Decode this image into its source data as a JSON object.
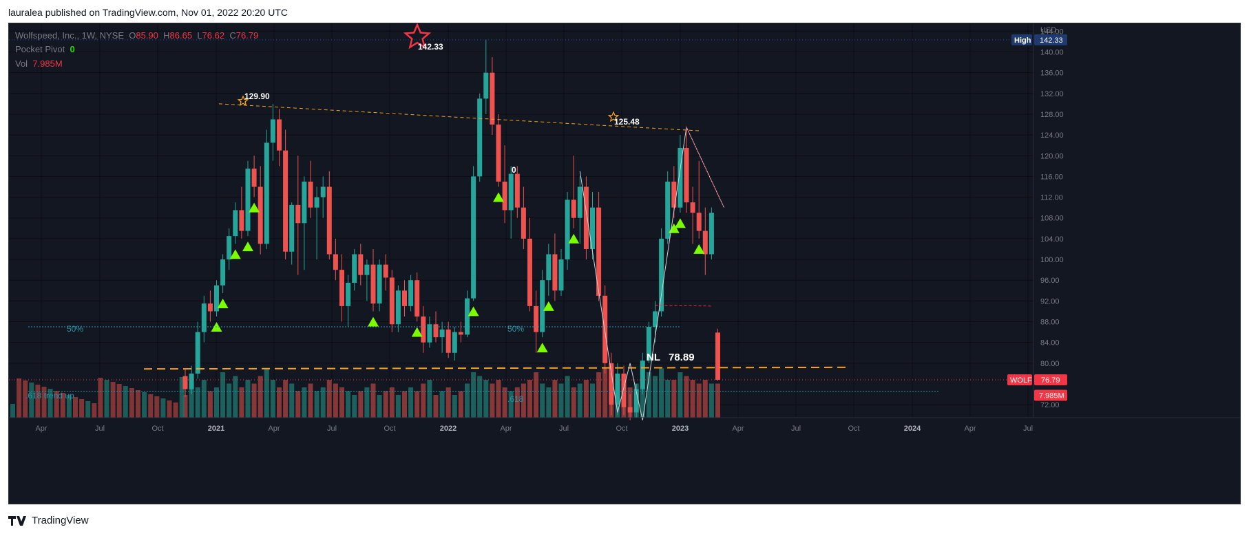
{
  "header": {
    "text": "lauralea published on TradingView.com, Nov 01, 2022 20:20 UTC"
  },
  "footer": {
    "brand": "TradingView",
    "logo": "tv-logo-icon"
  },
  "legend": {
    "symbol": "Wolfspeed, Inc., 1W, NYSE",
    "open_label": "O",
    "open": "85.90",
    "high_label": "H",
    "high": "86.65",
    "low_label": "L",
    "low": "76.62",
    "close_label": "C",
    "close": "76.79",
    "indicator_name": "Pocket Pivot",
    "indicator_value": "0",
    "vol_label": "Vol",
    "vol_value": "7.985M"
  },
  "colors": {
    "background": "#131722",
    "up": "#26a69a",
    "down": "#ef5350",
    "grid": "#000000",
    "orange": "#f7a21b",
    "fib": "#2196a8",
    "marker": "#7cfc00",
    "badge_high": "#1e3a6e",
    "badge_last": "#f23645"
  },
  "chart_data": {
    "type": "candlestick",
    "symbol": "WOLF",
    "currency": "USD",
    "y_ticks": [
      "72.00",
      "80.00",
      "84.00",
      "88.00",
      "92.00",
      "96.00",
      "100.00",
      "104.00",
      "108.00",
      "112.00",
      "116.00",
      "120.00",
      "124.00",
      "128.00",
      "132.00",
      "136.00",
      "140.00",
      "144.00"
    ],
    "x_ticks": [
      "Apr",
      "Jul",
      "Oct",
      "2021",
      "Apr",
      "Jul",
      "Oct",
      "2022",
      "Apr",
      "Jul",
      "Oct",
      "2023",
      "Apr",
      "Jul",
      "Oct",
      "2024",
      "Apr",
      "Jul"
    ],
    "x_tick_bold": [
      "2021",
      "2022",
      "2023",
      "2024"
    ],
    "last_price": "76.79",
    "last_volume": "7.985M",
    "high_label": "High",
    "high_value": "142.33",
    "annotations": {
      "peak_main": "142.33",
      "peak_left": "129.90",
      "peak_right": "125.48",
      "zero_label": "0",
      "fib50_left": "50%",
      "fib50_right": "50%",
      "fib618_left": ".618 trend up",
      "fib618_right": ".618",
      "neckline_label": "NL",
      "neckline_value": "78.89"
    },
    "candles": [
      {
        "o": 77.5,
        "h": 79.0,
        "l": 73.5,
        "c": 75.0
      },
      {
        "o": 75.0,
        "h": 79.5,
        "l": 74.0,
        "c": 78.0
      },
      {
        "o": 78.0,
        "h": 88.0,
        "l": 77.0,
        "c": 86.0
      },
      {
        "o": 86.0,
        "h": 93.0,
        "l": 84.0,
        "c": 91.5
      },
      {
        "o": 91.5,
        "h": 94.0,
        "l": 88.0,
        "c": 90.0
      },
      {
        "o": 90.0,
        "h": 96.0,
        "l": 89.0,
        "c": 95.0
      },
      {
        "o": 95.0,
        "h": 101.0,
        "l": 93.5,
        "c": 100.0
      },
      {
        "o": 100.0,
        "h": 106.0,
        "l": 98.0,
        "c": 104.5
      },
      {
        "o": 104.5,
        "h": 111.0,
        "l": 103.0,
        "c": 109.5
      },
      {
        "o": 109.5,
        "h": 114.0,
        "l": 104.0,
        "c": 105.5
      },
      {
        "o": 105.5,
        "h": 119.0,
        "l": 104.5,
        "c": 117.5
      },
      {
        "o": 117.5,
        "h": 120.0,
        "l": 112.0,
        "c": 114.0
      },
      {
        "o": 114.0,
        "h": 118.0,
        "l": 101.0,
        "c": 103.0
      },
      {
        "o": 103.0,
        "h": 125.0,
        "l": 102.0,
        "c": 122.5
      },
      {
        "o": 122.5,
        "h": 130.0,
        "l": 119.0,
        "c": 127.0
      },
      {
        "o": 127.0,
        "h": 129.0,
        "l": 118.0,
        "c": 121.0
      },
      {
        "o": 121.0,
        "h": 125.0,
        "l": 100.0,
        "c": 101.5
      },
      {
        "o": 101.5,
        "h": 111.0,
        "l": 99.0,
        "c": 110.5
      },
      {
        "o": 110.5,
        "h": 120.0,
        "l": 97.0,
        "c": 107.0
      },
      {
        "o": 107.0,
        "h": 116.0,
        "l": 98.0,
        "c": 115.0
      },
      {
        "o": 115.0,
        "h": 119.0,
        "l": 108.0,
        "c": 110.0
      },
      {
        "o": 110.0,
        "h": 114.0,
        "l": 100.0,
        "c": 112.0
      },
      {
        "o": 112.0,
        "h": 116.0,
        "l": 108.0,
        "c": 114.0
      },
      {
        "o": 114.0,
        "h": 117.0,
        "l": 100.0,
        "c": 101.0
      },
      {
        "o": 101.0,
        "h": 104.0,
        "l": 96.0,
        "c": 98.0
      },
      {
        "o": 98.0,
        "h": 101.0,
        "l": 88.0,
        "c": 91.0
      },
      {
        "o": 91.0,
        "h": 97.0,
        "l": 87.0,
        "c": 95.5
      },
      {
        "o": 95.5,
        "h": 102.0,
        "l": 94.0,
        "c": 101.0
      },
      {
        "o": 101.0,
        "h": 103.0,
        "l": 95.0,
        "c": 97.0
      },
      {
        "o": 97.0,
        "h": 100.0,
        "l": 92.0,
        "c": 99.0
      },
      {
        "o": 99.0,
        "h": 102.0,
        "l": 90.0,
        "c": 91.5
      },
      {
        "o": 91.5,
        "h": 100.0,
        "l": 90.0,
        "c": 99.0
      },
      {
        "o": 99.0,
        "h": 101.0,
        "l": 94.0,
        "c": 96.5
      },
      {
        "o": 96.5,
        "h": 98.0,
        "l": 86.0,
        "c": 87.5
      },
      {
        "o": 87.5,
        "h": 95.0,
        "l": 86.0,
        "c": 94.0
      },
      {
        "o": 94.0,
        "h": 96.0,
        "l": 89.0,
        "c": 91.0
      },
      {
        "o": 91.0,
        "h": 97.0,
        "l": 90.0,
        "c": 96.0
      },
      {
        "o": 96.0,
        "h": 97.5,
        "l": 88.0,
        "c": 89.0
      },
      {
        "o": 89.0,
        "h": 91.0,
        "l": 82.0,
        "c": 84.0
      },
      {
        "o": 84.0,
        "h": 89.0,
        "l": 83.0,
        "c": 87.5
      },
      {
        "o": 87.5,
        "h": 90.0,
        "l": 84.0,
        "c": 85.0
      },
      {
        "o": 85.0,
        "h": 88.0,
        "l": 82.0,
        "c": 86.5
      },
      {
        "o": 86.5,
        "h": 88.0,
        "l": 81.0,
        "c": 82.0
      },
      {
        "o": 82.0,
        "h": 87.0,
        "l": 80.5,
        "c": 86.0
      },
      {
        "o": 86.0,
        "h": 88.0,
        "l": 84.0,
        "c": 85.5
      },
      {
        "o": 85.5,
        "h": 94.0,
        "l": 85.0,
        "c": 92.5
      },
      {
        "o": 92.5,
        "h": 118.0,
        "l": 92.0,
        "c": 116.0
      },
      {
        "o": 116.0,
        "h": 132.0,
        "l": 115.0,
        "c": 131.0
      },
      {
        "o": 131.0,
        "h": 142.33,
        "l": 128.0,
        "c": 136.0
      },
      {
        "o": 136.0,
        "h": 139.0,
        "l": 124.0,
        "c": 126.0
      },
      {
        "o": 126.0,
        "h": 128.0,
        "l": 114.0,
        "c": 115.0
      },
      {
        "o": 115.0,
        "h": 122.0,
        "l": 107.0,
        "c": 109.5
      },
      {
        "o": 109.5,
        "h": 118.0,
        "l": 104.0,
        "c": 116.5
      },
      {
        "o": 116.5,
        "h": 118.0,
        "l": 108.0,
        "c": 110.0
      },
      {
        "o": 110.0,
        "h": 114.0,
        "l": 102.0,
        "c": 104.0
      },
      {
        "o": 104.0,
        "h": 108.0,
        "l": 90.0,
        "c": 91.0
      },
      {
        "o": 91.0,
        "h": 94.0,
        "l": 82.0,
        "c": 86.0
      },
      {
        "o": 86.0,
        "h": 98.0,
        "l": 85.0,
        "c": 96.0
      },
      {
        "o": 96.0,
        "h": 103.0,
        "l": 93.0,
        "c": 101.0
      },
      {
        "o": 101.0,
        "h": 105.0,
        "l": 92.0,
        "c": 94.0
      },
      {
        "o": 94.0,
        "h": 102.0,
        "l": 93.0,
        "c": 100.0
      },
      {
        "o": 100.0,
        "h": 113.0,
        "l": 98.0,
        "c": 111.5
      },
      {
        "o": 111.5,
        "h": 120.0,
        "l": 106.0,
        "c": 108.0
      },
      {
        "o": 108.0,
        "h": 116.0,
        "l": 103.0,
        "c": 114.0
      },
      {
        "o": 114.0,
        "h": 116.0,
        "l": 100.0,
        "c": 102.0
      },
      {
        "o": 102.0,
        "h": 113.0,
        "l": 100.0,
        "c": 110.0
      },
      {
        "o": 110.0,
        "h": 113.0,
        "l": 92.0,
        "c": 93.0
      },
      {
        "o": 93.0,
        "h": 95.0,
        "l": 78.0,
        "c": 80.0
      },
      {
        "o": 80.0,
        "h": 82.0,
        "l": 70.0,
        "c": 72.0
      },
      {
        "o": 72.0,
        "h": 80.0,
        "l": 70.0,
        "c": 78.0
      },
      {
        "o": 78.0,
        "h": 79.5,
        "l": 70.0,
        "c": 71.5
      },
      {
        "o": 71.5,
        "h": 74.0,
        "l": 69.0,
        "c": 70.5
      },
      {
        "o": 70.5,
        "h": 76.0,
        "l": 69.5,
        "c": 75.0
      },
      {
        "o": 75.0,
        "h": 82.0,
        "l": 74.0,
        "c": 80.5
      },
      {
        "o": 80.5,
        "h": 88.0,
        "l": 80.0,
        "c": 87.0
      },
      {
        "o": 87.0,
        "h": 92.0,
        "l": 84.0,
        "c": 90.0
      },
      {
        "o": 90.0,
        "h": 106.0,
        "l": 89.0,
        "c": 104.0
      },
      {
        "o": 104.0,
        "h": 117.0,
        "l": 103.0,
        "c": 115.0
      },
      {
        "o": 115.0,
        "h": 118.0,
        "l": 108.0,
        "c": 110.0
      },
      {
        "o": 110.0,
        "h": 124.0,
        "l": 109.0,
        "c": 121.5
      },
      {
        "o": 121.5,
        "h": 125.48,
        "l": 109.0,
        "c": 111.0
      },
      {
        "o": 111.0,
        "h": 114.0,
        "l": 103.0,
        "c": 109.0
      },
      {
        "o": 109.0,
        "h": 119.0,
        "l": 104.0,
        "c": 105.5
      },
      {
        "o": 105.5,
        "h": 110.0,
        "l": 97.0,
        "c": 101.0
      },
      {
        "o": 101.0,
        "h": 110.0,
        "l": 100.0,
        "c": 109.0
      },
      {
        "o": 85.9,
        "h": 86.65,
        "l": 76.62,
        "c": 76.79
      }
    ],
    "volumes": [
      0.6,
      0.9,
      0.8,
      1.0,
      0.7,
      0.8,
      1.2,
      0.9,
      1.1,
      0.8,
      1.0,
      0.9,
      1.1,
      1.3,
      1.0,
      0.8,
      1.0,
      0.9,
      0.7,
      0.8,
      0.9,
      0.7,
      0.8,
      1.0,
      0.9,
      0.8,
      0.7,
      0.6,
      0.7,
      0.8,
      0.9,
      0.6,
      0.7,
      0.8,
      0.6,
      0.7,
      0.8,
      0.7,
      0.9,
      1.0,
      0.6,
      0.7,
      0.8,
      0.6,
      0.7,
      0.9,
      1.2,
      1.1,
      1.0,
      0.9,
      1.0,
      0.8,
      0.7,
      0.8,
      0.9,
      1.0,
      1.2,
      0.9,
      0.8,
      1.0,
      0.9,
      1.1,
      0.8,
      0.9,
      1.0,
      0.9,
      1.2,
      1.3,
      1.1,
      0.9,
      1.0,
      0.8,
      0.9,
      1.0,
      1.2,
      1.1,
      1.3,
      1.0,
      1.0,
      1.2,
      1.1,
      1.0,
      0.9,
      1.0,
      0.9,
      0.9
    ],
    "pivot_markers": [
      5,
      6,
      8,
      10,
      11,
      30,
      37,
      46,
      50,
      57,
      58,
      62,
      78,
      79,
      82
    ],
    "ylim": [
      69.5,
      145.5
    ]
  }
}
